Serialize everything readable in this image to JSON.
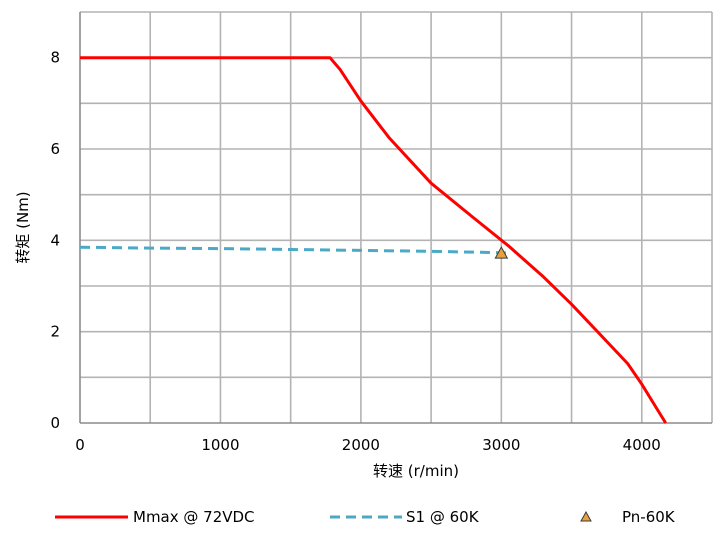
{
  "chart_data": {
    "type": "line",
    "title": "",
    "xlabel": "转速 (r/min)",
    "ylabel": "转矩 (Nm)",
    "xlim": [
      0,
      4500
    ],
    "ylim": [
      0,
      9
    ],
    "x_ticks": [
      0,
      1000,
      2000,
      3000,
      4000
    ],
    "y_ticks": [
      0,
      2,
      4,
      6,
      8
    ],
    "x_tick_labels": [
      "0",
      "1000",
      "2000",
      "3000",
      "4000"
    ],
    "y_tick_labels": [
      "0",
      "2",
      "4",
      "6",
      "8"
    ],
    "grid": {
      "x_step": 500,
      "y_step": 1,
      "visible": true
    },
    "legend_position": "bottom",
    "series": [
      {
        "name": "Mmax @ 72VDC",
        "style": "solid",
        "color": "#ff0000",
        "points": [
          [
            0,
            8
          ],
          [
            1780,
            8
          ],
          [
            1850,
            7.75
          ],
          [
            2000,
            7.05
          ],
          [
            2200,
            6.25
          ],
          [
            2500,
            5.25
          ],
          [
            2800,
            4.5
          ],
          [
            3050,
            3.88
          ],
          [
            3300,
            3.2
          ],
          [
            3500,
            2.6
          ],
          [
            3700,
            1.95
          ],
          [
            3900,
            1.3
          ],
          [
            4000,
            0.85
          ],
          [
            4100,
            0.35
          ],
          [
            4170,
            0
          ]
        ]
      },
      {
        "name": "S1 @ 60K",
        "style": "dashed",
        "color": "#4aaac6",
        "points": [
          [
            0,
            3.85
          ],
          [
            500,
            3.83
          ],
          [
            1000,
            3.82
          ],
          [
            1500,
            3.8
          ],
          [
            2000,
            3.78
          ],
          [
            2500,
            3.76
          ],
          [
            3000,
            3.73
          ],
          [
            3070,
            3.72
          ]
        ]
      },
      {
        "name": "Pn-60K",
        "style": "marker",
        "marker": "triangle",
        "color": "#e8a13a",
        "points": [
          [
            3000,
            3.72
          ]
        ]
      }
    ]
  }
}
